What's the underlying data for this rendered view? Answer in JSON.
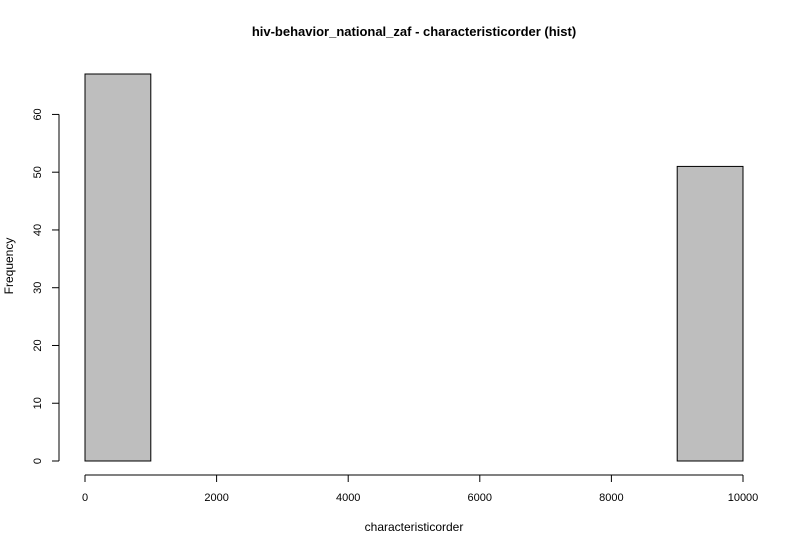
{
  "chart_data": {
    "type": "bar",
    "title": "hiv-behavior_national_zaf - characteristicorder (hist)",
    "xlabel": "characteristicorder",
    "ylabel": "Frequency",
    "bins": [
      {
        "start": 0,
        "end": 1000,
        "count": 67
      },
      {
        "start": 1000,
        "end": 2000,
        "count": 0
      },
      {
        "start": 2000,
        "end": 3000,
        "count": 0
      },
      {
        "start": 3000,
        "end": 4000,
        "count": 0
      },
      {
        "start": 4000,
        "end": 5000,
        "count": 0
      },
      {
        "start": 5000,
        "end": 6000,
        "count": 0
      },
      {
        "start": 6000,
        "end": 7000,
        "count": 0
      },
      {
        "start": 7000,
        "end": 8000,
        "count": 0
      },
      {
        "start": 8000,
        "end": 9000,
        "count": 0
      },
      {
        "start": 9000,
        "end": 10000,
        "count": 51
      }
    ],
    "xlim": [
      0,
      10000
    ],
    "ylim": [
      0,
      67
    ],
    "x_ticks": [
      0,
      2000,
      4000,
      6000,
      8000,
      10000
    ],
    "y_ticks": [
      0,
      10,
      20,
      30,
      40,
      50,
      60
    ],
    "bar_color": "#bebebe",
    "grid": false
  }
}
